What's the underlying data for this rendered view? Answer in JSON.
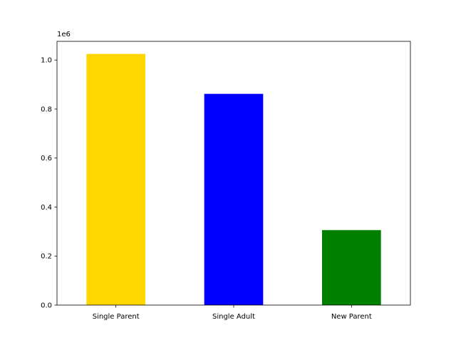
{
  "chart_data": {
    "type": "bar",
    "categories": [
      "Single Parent",
      "Single Adult",
      "New Parent"
    ],
    "values": [
      1025000,
      862000,
      306000
    ],
    "colors": [
      "#FFD700",
      "#0000FF",
      "#008000"
    ],
    "title": "",
    "xlabel": "",
    "ylabel": "",
    "ylim": [
      0,
      1076250
    ],
    "yticks": [
      0,
      200000,
      400000,
      600000,
      800000,
      1000000
    ],
    "ytick_labels": [
      "0.0",
      "0.2",
      "0.4",
      "0.6",
      "0.8",
      "1.0"
    ],
    "offset_label": "1e6",
    "grid": false,
    "legend": "none"
  }
}
